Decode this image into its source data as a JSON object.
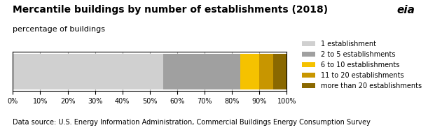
{
  "chart_data": {
    "type": "bar",
    "orientation": "horizontal",
    "stacked": true,
    "title": "Mercantile buildings by number of establishments (2018)",
    "subtitle": "percentage of buildings",
    "annotations": [
      "Data source: U.S. Energy Information Administration, Commercial Buildings Energy Consumption Survey",
      "eia"
    ],
    "categories": [
      null
    ],
    "series": [
      {
        "name": "1 establishment",
        "color": "#d0d0d0",
        "values": [
          55
        ]
      },
      {
        "name": "2 to 5 establishments",
        "color": "#a0a0a0",
        "values": [
          28
        ]
      },
      {
        "name": "6 to 10 establishments",
        "color": "#f5c200",
        "values": [
          7
        ]
      },
      {
        "name": "11 to 20 establishments",
        "color": "#c89600",
        "values": [
          5
        ]
      },
      {
        "name": "more than 20 establishments",
        "color": "#8a6800",
        "values": [
          5
        ]
      }
    ],
    "xlim": [
      0,
      100
    ],
    "xticks": [
      {
        "value": 0,
        "label": "0%"
      },
      {
        "value": 10,
        "label": "10%"
      },
      {
        "value": 20,
        "label": "20%"
      },
      {
        "value": 30,
        "label": "30%"
      },
      {
        "value": 40,
        "label": "40%"
      },
      {
        "value": 50,
        "label": "50%"
      },
      {
        "value": 60,
        "label": "60%"
      },
      {
        "value": 70,
        "label": "70%"
      },
      {
        "value": 80,
        "label": "80%"
      },
      {
        "value": 90,
        "label": "90%"
      },
      {
        "value": 100,
        "label": "100%"
      }
    ],
    "grid": true,
    "legend": "center right",
    "tick_labels": "x"
  }
}
